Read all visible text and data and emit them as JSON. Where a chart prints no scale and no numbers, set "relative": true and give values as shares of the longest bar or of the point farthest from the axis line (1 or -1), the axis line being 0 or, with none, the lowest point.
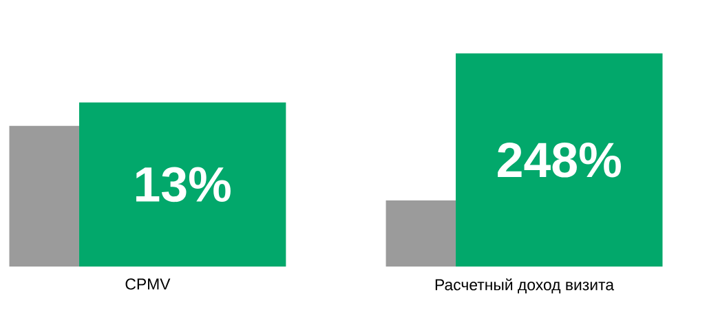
{
  "chart_data": {
    "type": "bar",
    "relative": true,
    "categories": [
      "CPMV",
      "Расчетный доход визита"
    ],
    "series": [
      {
        "color": "#9b9b9b",
        "values": [
          0.66,
          0.31
        ]
      },
      {
        "color": "#02a86b",
        "values": [
          0.77,
          1
        ]
      }
    ],
    "annotations": [
      "13%",
      "248%"
    ]
  }
}
